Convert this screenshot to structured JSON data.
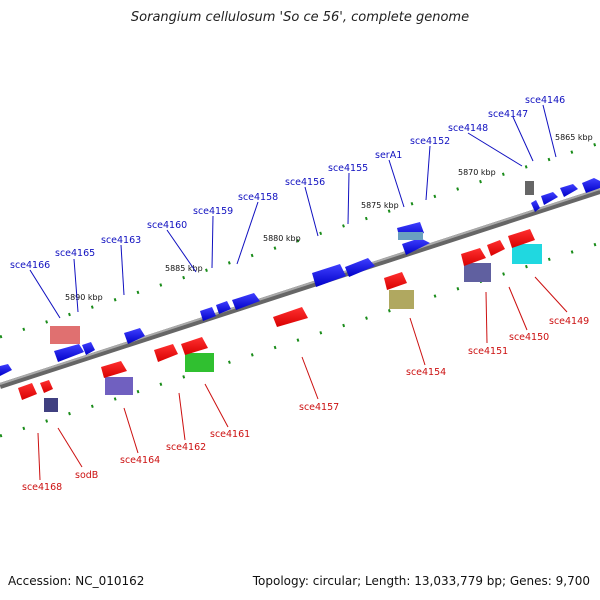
{
  "title": "Sorangium cellulosum 'So ce 56', complete genome",
  "footer": {
    "accession": "Accession: NC_010162",
    "summary": "Topology: circular; Length: 13,033,779 bp; Genes: 9,700"
  },
  "colors": {
    "backbone": "#808080",
    "tick": "#1a8c1a",
    "forward_label": "#1010c0",
    "reverse_label": "#cc1010"
  },
  "kbp_labels": [
    "5865 kbp",
    "5870 kbp",
    "5875 kbp",
    "5880 kbp",
    "5885 kbp",
    "5890 kbp"
  ],
  "genes_forward": [
    "sce4146",
    "sce4147",
    "sce4148",
    "sce4152",
    "serA1",
    "sce4155",
    "sce4156",
    "sce4158",
    "sce4159",
    "sce4160",
    "sce4163",
    "sce4165",
    "sce4166"
  ],
  "genes_reverse": [
    "sce4149",
    "sce4150",
    "sce4151",
    "sce4154",
    "sce4157",
    "sce4161",
    "sce4162",
    "sce4164",
    "sodB",
    "sce4168"
  ]
}
